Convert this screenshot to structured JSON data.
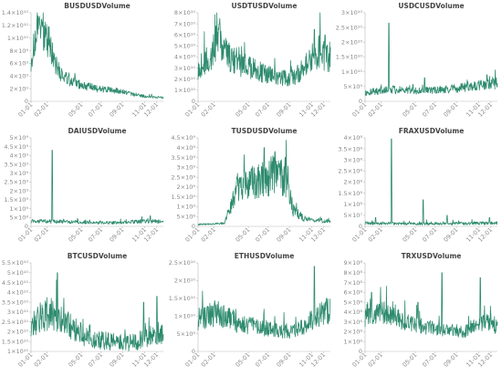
{
  "chart_data": [
    {
      "type": "line",
      "title": "BUSDUSDVolume",
      "y_ticks": [
        "0",
        "2×10⁹",
        "4×10⁹",
        "6×10⁹",
        "8×10⁹",
        "1×10¹⁰",
        "1.2×10¹⁰",
        "1.4×10¹⁰"
      ],
      "ylim": [
        0,
        14000000000
      ],
      "x_ticks": [
        "01-01",
        "02-01",
        "05-01",
        "07-01",
        "09-01",
        "11-01",
        "12-01"
      ],
      "x_tick_pos": [
        0,
        0.12,
        0.38,
        0.53,
        0.69,
        0.86,
        0.95
      ],
      "series": [
        {
          "color": "#2e8b6e",
          "profile": [
            [
              0,
              6500000000
            ],
            [
              0.03,
              9500000000
            ],
            [
              0.06,
              12000000000
            ],
            [
              0.1,
              11000000000
            ],
            [
              0.14,
              9000000000
            ],
            [
              0.18,
              6000000000
            ],
            [
              0.22,
              4500000000
            ],
            [
              0.3,
              3000000000
            ],
            [
              0.4,
              2500000000
            ],
            [
              0.5,
              2000000000
            ],
            [
              0.6,
              1800000000
            ],
            [
              0.7,
              1500000000
            ],
            [
              0.8,
              1000000000
            ],
            [
              0.9,
              700000000
            ],
            [
              1,
              600000000
            ]
          ],
          "noise": 0.28,
          "spikes": []
        }
      ]
    },
    {
      "type": "line",
      "title": "USDTUSDVolume",
      "y_ticks": [
        "0",
        "1×10¹⁰",
        "2×10¹⁰",
        "3×10¹⁰",
        "4×10¹⁰",
        "5×10¹⁰",
        "6×10¹⁰",
        "7×10¹⁰",
        "8×10¹⁰"
      ],
      "ylim": [
        0,
        80000000000
      ],
      "x_ticks": [
        "01-01",
        "02-01",
        "05-01",
        "07-01",
        "09-01",
        "11-01",
        "12-01"
      ],
      "x_tick_pos": [
        0,
        0.12,
        0.38,
        0.53,
        0.69,
        0.86,
        0.95
      ],
      "series": [
        {
          "color": "#2e8b6e",
          "profile": [
            [
              0,
              30000000000
            ],
            [
              0.1,
              40000000000
            ],
            [
              0.15,
              60000000000
            ],
            [
              0.2,
              45000000000
            ],
            [
              0.3,
              35000000000
            ],
            [
              0.4,
              30000000000
            ],
            [
              0.5,
              25000000000
            ],
            [
              0.6,
              22000000000
            ],
            [
              0.7,
              20000000000
            ],
            [
              0.8,
              30000000000
            ],
            [
              0.9,
              45000000000
            ],
            [
              1,
              40000000000
            ]
          ],
          "noise": 0.35,
          "spikes": [
            [
              0.16,
              70000000000
            ],
            [
              0.88,
              65000000000
            ],
            [
              0.96,
              60000000000
            ]
          ]
        }
      ]
    },
    {
      "type": "line",
      "title": "USDCUSDVolume",
      "y_ticks": [
        "0",
        "5×10⁹",
        "1×10¹⁰",
        "1.5×10¹⁰",
        "2×10¹⁰",
        "2.5×10¹⁰",
        "3×10¹⁰"
      ],
      "ylim": [
        0,
        30000000000
      ],
      "x_ticks": [
        "01-01",
        "02-01",
        "05-01",
        "07-01",
        "09-01",
        "11-01",
        "12-01"
      ],
      "x_tick_pos": [
        0,
        0.12,
        0.38,
        0.53,
        0.69,
        0.86,
        0.95
      ],
      "series": [
        {
          "color": "#2e8b6e",
          "profile": [
            [
              0,
              3000000000
            ],
            [
              0.2,
              4000000000
            ],
            [
              0.4,
              3500000000
            ],
            [
              0.6,
              4000000000
            ],
            [
              0.8,
              5000000000
            ],
            [
              1,
              6000000000
            ]
          ],
          "noise": 0.35,
          "spikes": [
            [
              0.18,
              26500000000
            ],
            [
              0.45,
              8000000000
            ],
            [
              0.92,
              9000000000
            ]
          ]
        }
      ]
    },
    {
      "type": "line",
      "title": "DAIUSDVolume",
      "y_ticks": [
        "0",
        "5×10⁸",
        "1×10⁹",
        "1.5×10⁹",
        "2×10⁹",
        "2.5×10⁹",
        "3×10⁹",
        "3.5×10⁹",
        "4×10⁹",
        "4.5×10⁹",
        "5×10⁹"
      ],
      "ylim": [
        0,
        5000000000
      ],
      "x_ticks": [
        "01-01",
        "02-01",
        "05-01",
        "07-01",
        "09-01",
        "11-01",
        "12-01"
      ],
      "x_tick_pos": [
        0,
        0.12,
        0.38,
        0.53,
        0.69,
        0.86,
        0.95
      ],
      "series": [
        {
          "color": "#2e8b6e",
          "profile": [
            [
              0,
              300000000
            ],
            [
              0.3,
              250000000
            ],
            [
              0.6,
              200000000
            ],
            [
              0.9,
              300000000
            ],
            [
              1,
              250000000
            ]
          ],
          "noise": 0.4,
          "spikes": [
            [
              0.16,
              4300000000
            ],
            [
              0.9,
              600000000
            ]
          ]
        }
      ]
    },
    {
      "type": "line",
      "title": "TUSDUSDVolume",
      "y_ticks": [
        "0",
        "5×10⁸",
        "1×10⁹",
        "1.5×10⁹",
        "2×10⁹",
        "2.5×10⁹",
        "3×10⁹",
        "3.5×10⁹",
        "4×10⁹",
        "4.5×10⁹"
      ],
      "ylim": [
        0,
        4500000000
      ],
      "x_ticks": [
        "01-01",
        "02-01",
        "05-01",
        "07-01",
        "09-01",
        "11-01",
        "12-01"
      ],
      "x_tick_pos": [
        0,
        0.12,
        0.38,
        0.53,
        0.69,
        0.86,
        0.95
      ],
      "series": [
        {
          "color": "#2e8b6e",
          "profile": [
            [
              0,
              100000000
            ],
            [
              0.2,
              150000000
            ],
            [
              0.25,
              1000000000
            ],
            [
              0.3,
              2000000000
            ],
            [
              0.4,
              2200000000
            ],
            [
              0.5,
              2500000000
            ],
            [
              0.6,
              2600000000
            ],
            [
              0.68,
              2200000000
            ],
            [
              0.72,
              800000000
            ],
            [
              0.8,
              400000000
            ],
            [
              0.9,
              300000000
            ],
            [
              1,
              300000000
            ]
          ],
          "noise": 0.4,
          "spikes": [
            [
              0.5,
              4000000000
            ],
            [
              0.58,
              3800000000
            ],
            [
              0.66,
              3500000000
            ]
          ]
        }
      ]
    },
    {
      "type": "line",
      "title": "FRAXUSDVolume",
      "y_ticks": [
        "0",
        "5×10⁷",
        "1×10⁸",
        "1.5×10⁸",
        "2×10⁸",
        "2.5×10⁸",
        "3×10⁸",
        "3.5×10⁸",
        "4×10⁸"
      ],
      "ylim": [
        0,
        400000000
      ],
      "x_ticks": [
        "01-01",
        "02-01",
        "05-01",
        "07-01",
        "09-01",
        "11-01",
        "12-01"
      ],
      "x_tick_pos": [
        0,
        0.12,
        0.38,
        0.53,
        0.69,
        0.86,
        0.95
      ],
      "series": [
        {
          "color": "#2e8b6e",
          "profile": [
            [
              0,
              15000000
            ],
            [
              0.5,
              12000000
            ],
            [
              1,
              15000000
            ]
          ],
          "noise": 0.5,
          "spikes": [
            [
              0.2,
              395000000
            ],
            [
              0.08,
              40000000
            ],
            [
              0.44,
              120000000
            ],
            [
              0.62,
              50000000
            ],
            [
              0.94,
              40000000
            ]
          ]
        }
      ]
    },
    {
      "type": "line",
      "title": "BTCUSDVolume",
      "y_ticks": [
        "1×10¹⁰",
        "1.5×10¹⁰",
        "2×10¹⁰",
        "2.5×10¹⁰",
        "3×10¹⁰",
        "3.5×10¹⁰",
        "4×10¹⁰",
        "4.5×10¹⁰",
        "5×10¹⁰",
        "5.5×10¹⁰"
      ],
      "ylim": [
        10000000000,
        55000000000
      ],
      "x_ticks": [
        "01-01",
        "02-01",
        "05-01",
        "07-01",
        "09-01",
        "11-01",
        "12-01"
      ],
      "x_tick_pos": [
        0,
        0.12,
        0.38,
        0.53,
        0.69,
        0.86,
        0.95
      ],
      "series": [
        {
          "color": "#2e8b6e",
          "profile": [
            [
              0,
              25000000000
            ],
            [
              0.15,
              30000000000
            ],
            [
              0.25,
              25000000000
            ],
            [
              0.4,
              18000000000
            ],
            [
              0.5,
              16000000000
            ],
            [
              0.6,
              15000000000
            ],
            [
              0.7,
              14000000000
            ],
            [
              0.8,
              15000000000
            ],
            [
              0.9,
              18000000000
            ],
            [
              1,
              20000000000
            ]
          ],
          "noise": 0.3,
          "spikes": [
            [
              0.2,
              50000000000
            ],
            [
              0.85,
              35000000000
            ],
            [
              0.95,
              38000000000
            ]
          ]
        }
      ]
    },
    {
      "type": "line",
      "title": "ETHUSDVolume",
      "y_ticks": [
        "0",
        "5×10⁹",
        "1×10¹⁰",
        "1.5×10¹⁰",
        "2×10¹⁰",
        "2.5×10¹⁰"
      ],
      "ylim": [
        0,
        25000000000
      ],
      "x_ticks": [
        "01-01",
        "02-01",
        "05-01",
        "07-01",
        "09-01",
        "11-01",
        "12-01"
      ],
      "x_tick_pos": [
        0,
        0.12,
        0.38,
        0.53,
        0.69,
        0.86,
        0.95
      ],
      "series": [
        {
          "color": "#2e8b6e",
          "profile": [
            [
              0,
              9000000000
            ],
            [
              0.15,
              11000000000
            ],
            [
              0.3,
              8000000000
            ],
            [
              0.45,
              7000000000
            ],
            [
              0.6,
              6000000000
            ],
            [
              0.7,
              5500000000
            ],
            [
              0.8,
              7000000000
            ],
            [
              0.9,
              10000000000
            ],
            [
              1,
              12000000000
            ]
          ],
          "noise": 0.35,
          "spikes": [
            [
              0.88,
              24000000000
            ],
            [
              0.97,
              15000000000
            ]
          ]
        }
      ]
    },
    {
      "type": "line",
      "title": "TRXUSDVolume",
      "y_ticks": [
        "0",
        "1×10⁸",
        "2×10⁸",
        "3×10⁸",
        "4×10⁸",
        "5×10⁸",
        "6×10⁸",
        "7×10⁸",
        "8×10⁸",
        "9×10⁸"
      ],
      "ylim": [
        0,
        900000000
      ],
      "x_ticks": [
        "01-01",
        "02-01",
        "05-01",
        "07-01",
        "09-01",
        "11-01",
        "12-01"
      ],
      "x_tick_pos": [
        0,
        0.12,
        0.38,
        0.53,
        0.69,
        0.86,
        0.95
      ],
      "series": [
        {
          "color": "#2e8b6e",
          "profile": [
            [
              0,
              350000000
            ],
            [
              0.15,
              400000000
            ],
            [
              0.3,
              300000000
            ],
            [
              0.45,
              250000000
            ],
            [
              0.6,
              220000000
            ],
            [
              0.75,
              200000000
            ],
            [
              0.9,
              300000000
            ],
            [
              1,
              250000000
            ]
          ],
          "noise": 0.3,
          "spikes": [
            [
              0.05,
              600000000
            ],
            [
              0.58,
              800000000
            ],
            [
              0.87,
              750000000
            ],
            [
              0.4,
              500000000
            ]
          ]
        }
      ]
    }
  ]
}
